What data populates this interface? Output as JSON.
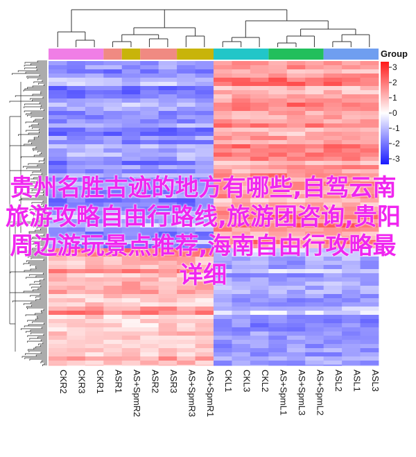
{
  "chart_data": {
    "type": "heatmap",
    "columns": [
      "CKR2",
      "CKR3",
      "CKR1",
      "ASR1",
      "AS+SpmR2",
      "ASR2",
      "ASR3",
      "AS+SpmR3",
      "AS+SpmR1",
      "CKL1",
      "CKL3",
      "CKL2",
      "AS+SpmL1",
      "AS+SpmL3",
      "AS+SpmL2",
      "ASL2",
      "ASL1",
      "ASL3"
    ],
    "groups": [
      {
        "columns": [
          "CKR2",
          "CKR3",
          "CKR1"
        ],
        "color": "#f07ee6"
      },
      {
        "columns": [
          "ASR1"
        ],
        "color": "#f08a82"
      },
      {
        "columns": [
          "AS+SpmR2"
        ],
        "color": "#c8b40a"
      },
      {
        "columns": [
          "ASR2",
          "ASR3"
        ],
        "color": "#f08a82"
      },
      {
        "columns": [
          "AS+SpmR3",
          "AS+SpmR1"
        ],
        "color": "#c8b40a"
      },
      {
        "columns": [
          "CKL1",
          "CKL3",
          "CKL2"
        ],
        "color": "#22c6c8"
      },
      {
        "columns": [
          "AS+SpmL1",
          "AS+SpmL3",
          "AS+SpmL2"
        ],
        "color": "#22bf5c"
      },
      {
        "columns": [
          "ASL2",
          "ASL1",
          "ASL3"
        ],
        "color": "#6f9ef0"
      }
    ],
    "blocks": [
      {
        "columns": "left",
        "rows": "top",
        "value": -1.3
      },
      {
        "columns": "right",
        "rows": "top",
        "value": 1.4
      },
      {
        "columns": "left",
        "rows": "bottom",
        "value": 1.1
      },
      {
        "columns": "right",
        "rows": "bottom",
        "value": -1.0
      }
    ],
    "legend": {
      "title": "Group",
      "ticks": [
        "3",
        "2",
        "1",
        "0",
        "-1",
        "-2",
        "-3"
      ],
      "range": [
        -3,
        3
      ],
      "colors": {
        "low": "#1a1aff",
        "mid": "#ffffff",
        "high": "#ff1a1a"
      }
    }
  },
  "overlay": {
    "title": "贵州名胜古迹的地方有哪些,自驾云南旅游攻略自由行路线,旅游团咨询,贵阳周边游玩景点推荐,海南自由行攻略最详细"
  }
}
